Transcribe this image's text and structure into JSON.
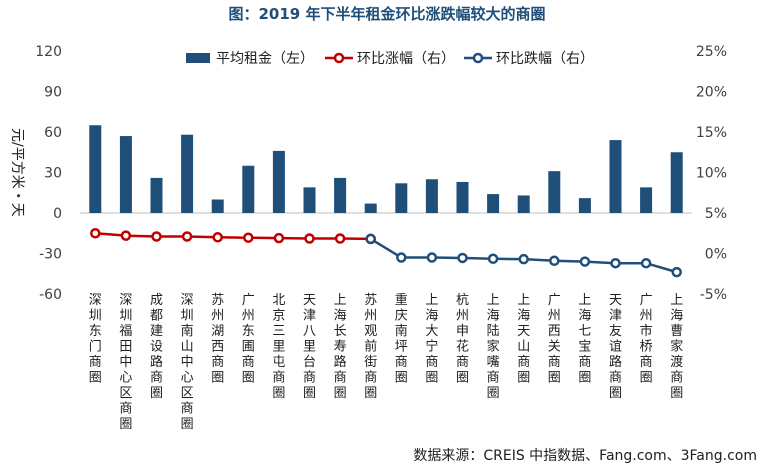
{
  "chart_data": {
    "type": "bar+line",
    "title": "图：2019 年下半年租金环比涨跌幅较大的商圈",
    "categories": [
      "深圳东门商圈",
      "深圳福田中心区商圈",
      "成都建设路商圈",
      "深圳南山中心区商圈",
      "苏州湖西商圈",
      "广州东圃商圈",
      "北京三里屯商圈",
      "天津八里台商圈",
      "上海长寿路商圈",
      "苏州观前街商圈",
      "重庆南坪商圈",
      "上海大宁商圈",
      "杭州申花商圈",
      "上海陆家嘴商圈",
      "上海天山商圈",
      "广州西关商圈",
      "上海七宝商圈",
      "天津友谊路商圈",
      "广州市桥商圈",
      "上海曹家渡商圈"
    ],
    "left_axis": {
      "label": "元/平方米・天",
      "min": -60,
      "max": 120,
      "ticks": [
        "120",
        "90",
        "60",
        "30",
        "0",
        "-30",
        "-60"
      ]
    },
    "right_axis": {
      "min": -5,
      "max": 25,
      "ticks": [
        "25%",
        "20%",
        "15%",
        "10%",
        "5%",
        "0%",
        "-5%"
      ]
    },
    "series": [
      {
        "name": "平均租金（左）",
        "kind": "bar",
        "axis": "left",
        "color": "#1f4e79",
        "values": [
          65,
          57,
          26,
          58,
          10,
          35,
          46,
          19,
          26,
          7,
          22,
          25,
          23,
          14,
          13,
          31,
          11,
          54,
          19,
          45
        ]
      },
      {
        "name": "环比涨幅（右）",
        "kind": "line",
        "axis": "right",
        "color": "#c00000",
        "values": [
          2.5,
          2.2,
          2.1,
          2.1,
          2.0,
          1.95,
          1.9,
          1.85,
          1.85,
          1.8,
          null,
          null,
          null,
          null,
          null,
          null,
          null,
          null,
          null,
          null
        ]
      },
      {
        "name": "环比跌幅（右）",
        "kind": "line",
        "axis": "right",
        "color": "#1f4e79",
        "values": [
          null,
          null,
          null,
          null,
          null,
          null,
          null,
          null,
          null,
          1.8,
          -0.5,
          -0.5,
          -0.55,
          -0.65,
          -0.7,
          -0.9,
          -1.0,
          -1.2,
          -1.2,
          -2.3
        ]
      }
    ],
    "legend_position": "top-center"
  },
  "source": "数据来源：CREIS 中指数据、Fang.com、3Fang.com"
}
